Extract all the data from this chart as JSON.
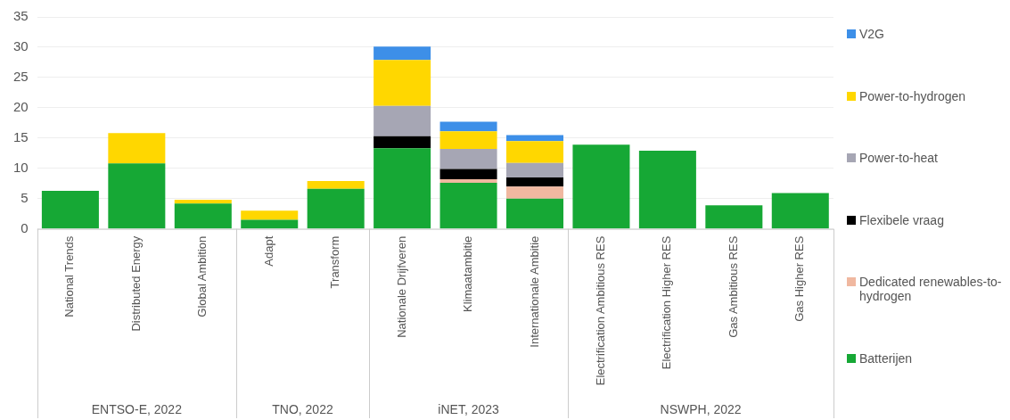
{
  "chart_data": {
    "type": "bar",
    "stacked": true,
    "categories": [
      "National Trends",
      "Distributed Energy",
      "Global Ambition",
      "Adapt",
      "Transform",
      "Nationale Drijfveren",
      "Klimaatambitie",
      "Internationale Ambitie",
      "Electrification Ambitious RES",
      "Electrification Higher RES",
      "Gas Ambitious RES",
      "Gas Higher RES"
    ],
    "series": [
      {
        "name": "Batterijen",
        "color": "#16a835",
        "values": [
          6.3,
          10.8,
          4.2,
          1.5,
          6.6,
          13.3,
          7.6,
          5.0,
          13.9,
          12.9,
          3.9,
          5.9
        ]
      },
      {
        "name": "Dedicated renewables-to-hydrogen",
        "color": "#f0b8a0",
        "values": [
          null,
          null,
          null,
          null,
          null,
          null,
          0.6,
          2.0,
          null,
          null,
          null,
          null
        ]
      },
      {
        "name": "Flexibele vraag",
        "color": "#000000",
        "values": [
          null,
          null,
          null,
          null,
          null,
          2.0,
          1.7,
          1.5,
          null,
          null,
          null,
          null
        ]
      },
      {
        "name": "Power-to-heat",
        "color": "#a6a6b4",
        "values": [
          null,
          null,
          null,
          null,
          null,
          5.0,
          3.3,
          2.4,
          null,
          null,
          null,
          null
        ]
      },
      {
        "name": "Power-to-hydrogen",
        "color": "#ffd700",
        "values": [
          null,
          5.0,
          0.6,
          1.5,
          1.3,
          7.6,
          2.9,
          3.6,
          null,
          null,
          null,
          null
        ]
      },
      {
        "name": "V2G",
        "color": "#3d8fe8",
        "values": [
          null,
          null,
          null,
          null,
          null,
          2.2,
          1.6,
          1.0,
          null,
          null,
          null,
          null
        ]
      }
    ],
    "ylim": [
      0,
      35
    ],
    "yticks": [
      0,
      5,
      10,
      15,
      20,
      25,
      30,
      35
    ],
    "grid": "y",
    "legend": "right",
    "annotations": [
      "ENTSO-E, 2022",
      "TNO, 2022",
      "iNET, 2023",
      "NSWPH, 2022"
    ]
  }
}
